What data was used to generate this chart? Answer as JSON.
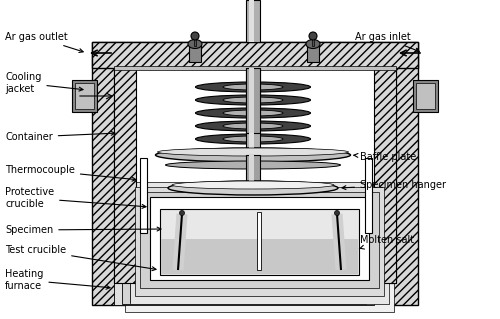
{
  "bg_color": "#ffffff",
  "labels": {
    "ar_gas_outlet": "Ar gas outlet",
    "ar_gas_inlet": "Ar gas inlet",
    "cooling_jacket": "Cooling\njacket",
    "container": "Container",
    "thermocouple": "Thermocouple",
    "protective_crucible": "Protective\ncrucible",
    "specimen": "Specimen",
    "test_crucible": "Test crucible",
    "heating_furnace": "Heating\nfurnace",
    "baffle_plate": "Baffle plate",
    "specimen_hanger": "Specimen hanger",
    "molten_salt": "Molten salt"
  }
}
